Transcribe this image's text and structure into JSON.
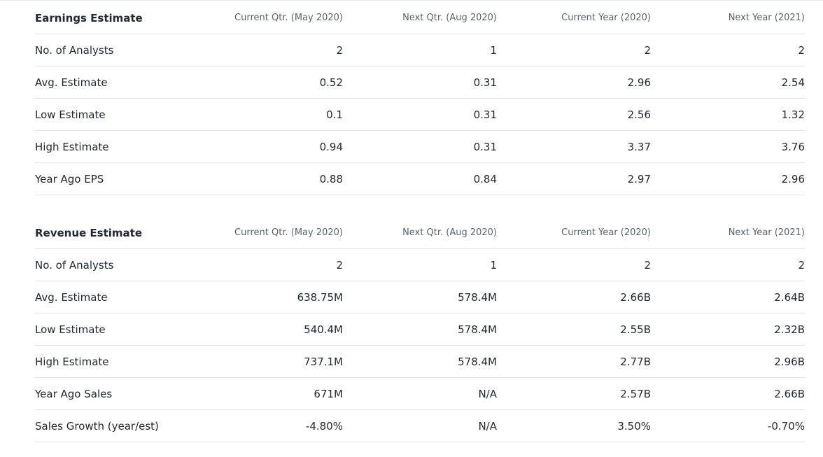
{
  "earnings": {
    "title": "Earnings Estimate",
    "columns": [
      "Current Qtr. (May 2020)",
      "Next Qtr. (Aug 2020)",
      "Current Year (2020)",
      "Next Year (2021)"
    ],
    "rows": [
      {
        "label": "No. of Analysts",
        "values": [
          "2",
          "1",
          "2",
          "2"
        ]
      },
      {
        "label": "Avg. Estimate",
        "values": [
          "0.52",
          "0.31",
          "2.96",
          "2.54"
        ]
      },
      {
        "label": "Low Estimate",
        "values": [
          "0.1",
          "0.31",
          "2.56",
          "1.32"
        ]
      },
      {
        "label": "High Estimate",
        "values": [
          "0.94",
          "0.31",
          "3.37",
          "3.76"
        ]
      },
      {
        "label": "Year Ago EPS",
        "values": [
          "0.88",
          "0.84",
          "2.97",
          "2.96"
        ]
      }
    ]
  },
  "revenue": {
    "title": "Revenue Estimate",
    "columns": [
      "Current Qtr. (May 2020)",
      "Next Qtr. (Aug 2020)",
      "Current Year (2020)",
      "Next Year (2021)"
    ],
    "rows": [
      {
        "label": "No. of Analysts",
        "values": [
          "2",
          "1",
          "2",
          "2"
        ]
      },
      {
        "label": "Avg. Estimate",
        "values": [
          "638.75M",
          "578.4M",
          "2.66B",
          "2.64B"
        ]
      },
      {
        "label": "Low Estimate",
        "values": [
          "540.4M",
          "578.4M",
          "2.55B",
          "2.32B"
        ]
      },
      {
        "label": "High Estimate",
        "values": [
          "737.1M",
          "578.4M",
          "2.77B",
          "2.96B"
        ]
      },
      {
        "label": "Year Ago Sales",
        "values": [
          "671M",
          "N/A",
          "2.57B",
          "2.66B"
        ]
      },
      {
        "label": "Sales Growth (year/est)",
        "values": [
          "-4.80%",
          "N/A",
          "3.50%",
          "-0.70%"
        ]
      }
    ]
  }
}
